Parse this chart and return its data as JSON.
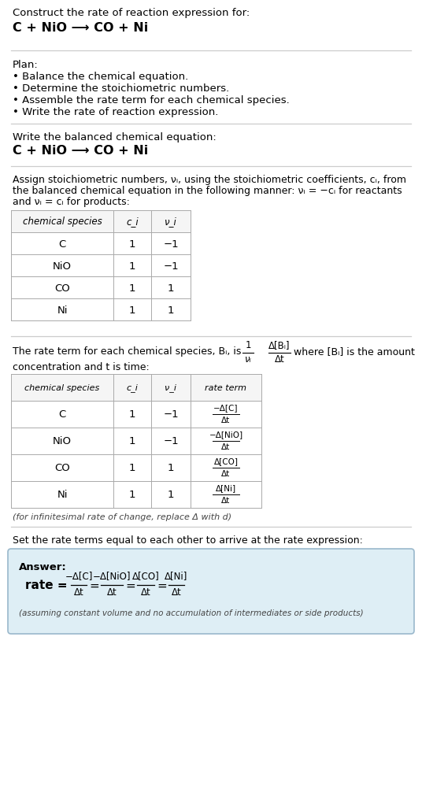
{
  "title_line1": "Construct the rate of reaction expression for:",
  "title_line2": "C + NiO ⟶ CO + Ni",
  "bg_color": "#ffffff",
  "section_bg": "#deeef5",
  "border_color": "#9ab8cc",
  "plan_header": "Plan:",
  "plan_items": [
    "• Balance the chemical equation.",
    "• Determine the stoichiometric numbers.",
    "• Assemble the rate term for each chemical species.",
    "• Write the rate of reaction expression."
  ],
  "balanced_header": "Write the balanced chemical equation:",
  "balanced_eq": "C + NiO ⟶ CO + Ni",
  "table1_headers": [
    "chemical species",
    "c_i",
    "ν_i"
  ],
  "table1_data": [
    [
      "C",
      "1",
      "−1"
    ],
    [
      "NiO",
      "1",
      "−1"
    ],
    [
      "CO",
      "1",
      "1"
    ],
    [
      "Ni",
      "1",
      "1"
    ]
  ],
  "table2_headers": [
    "chemical species",
    "c_i",
    "ν_i",
    "rate term"
  ],
  "table2_data": [
    [
      "C",
      "1",
      "−1"
    ],
    [
      "NiO",
      "1",
      "−1"
    ],
    [
      "CO",
      "1",
      "1"
    ],
    [
      "Ni",
      "1",
      "1"
    ]
  ],
  "rate_nums": [
    "−Δ[C]",
    "−Δ[NiO]",
    "Δ[CO]",
    "Δ[Ni]"
  ],
  "infinitesimal_note": "(for infinitesimal rate of change, replace Δ with d)",
  "set_equal_text": "Set the rate terms equal to each other to arrive at the rate expression:",
  "answer_label": "Answer:",
  "answer_note": "(assuming constant volume and no accumulation of intermediates or side products)",
  "line_color": "#cccccc",
  "text_color": "#000000",
  "table_border": "#aaaaaa",
  "table_header_bg": "#f5f5f5"
}
